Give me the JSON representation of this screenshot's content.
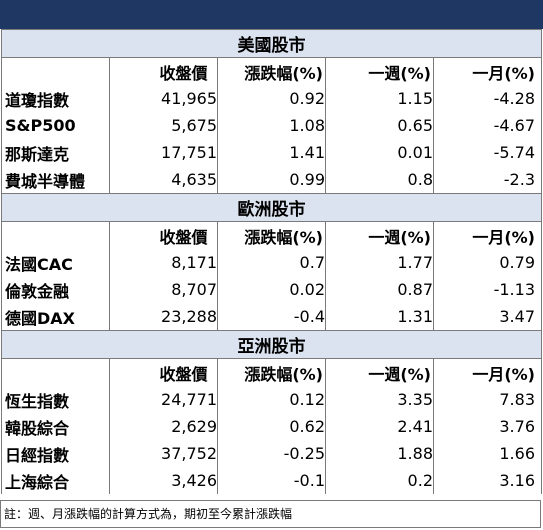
{
  "header": {
    "bar_color": "#1f3763"
  },
  "colors": {
    "section_bg": "#dbe3f0",
    "border": "#7a7a7a"
  },
  "columns": [
    "收盤價",
    "漲跌幅(%)",
    "一週(%)",
    "一月(%)"
  ],
  "sections": [
    {
      "title": "美國股市",
      "rows": [
        {
          "name": "道瓊指數",
          "close": "41,965",
          "change": "0.92",
          "week": "1.15",
          "month": "-4.28"
        },
        {
          "name": "S&P500",
          "close": "5,675",
          "change": "1.08",
          "week": "0.65",
          "month": "-4.67"
        },
        {
          "name": "那斯達克",
          "close": "17,751",
          "change": "1.41",
          "week": "0.01",
          "month": "-5.74"
        },
        {
          "name": "費城半導體",
          "close": "4,635",
          "change": "0.99",
          "week": "0.8",
          "month": "-2.3"
        }
      ]
    },
    {
      "title": "歐洲股市",
      "rows": [
        {
          "name": "法國CAC",
          "close": "8,171",
          "change": "0.7",
          "week": "1.77",
          "month": "0.79"
        },
        {
          "name": "倫敦金融",
          "close": "8,707",
          "change": "0.02",
          "week": "0.87",
          "month": "-1.13"
        },
        {
          "name": "德國DAX",
          "close": "23,288",
          "change": "-0.4",
          "week": "1.31",
          "month": "3.47"
        }
      ]
    },
    {
      "title": "亞洲股市",
      "rows": [
        {
          "name": "恆生指數",
          "close": "24,771",
          "change": "0.12",
          "week": "3.35",
          "month": "7.83"
        },
        {
          "name": "韓股綜合",
          "close": "2,629",
          "change": "0.62",
          "week": "2.41",
          "month": "3.76"
        },
        {
          "name": "日經指數",
          "close": "37,752",
          "change": "-0.25",
          "week": "1.88",
          "month": "1.66"
        },
        {
          "name": "上海綜合",
          "close": "3,426",
          "change": "-0.1",
          "week": "0.2",
          "month": "3.16"
        }
      ]
    }
  ],
  "note": "註：週、月漲跌幅的計算方式為，期初至今累計漲跌幅"
}
